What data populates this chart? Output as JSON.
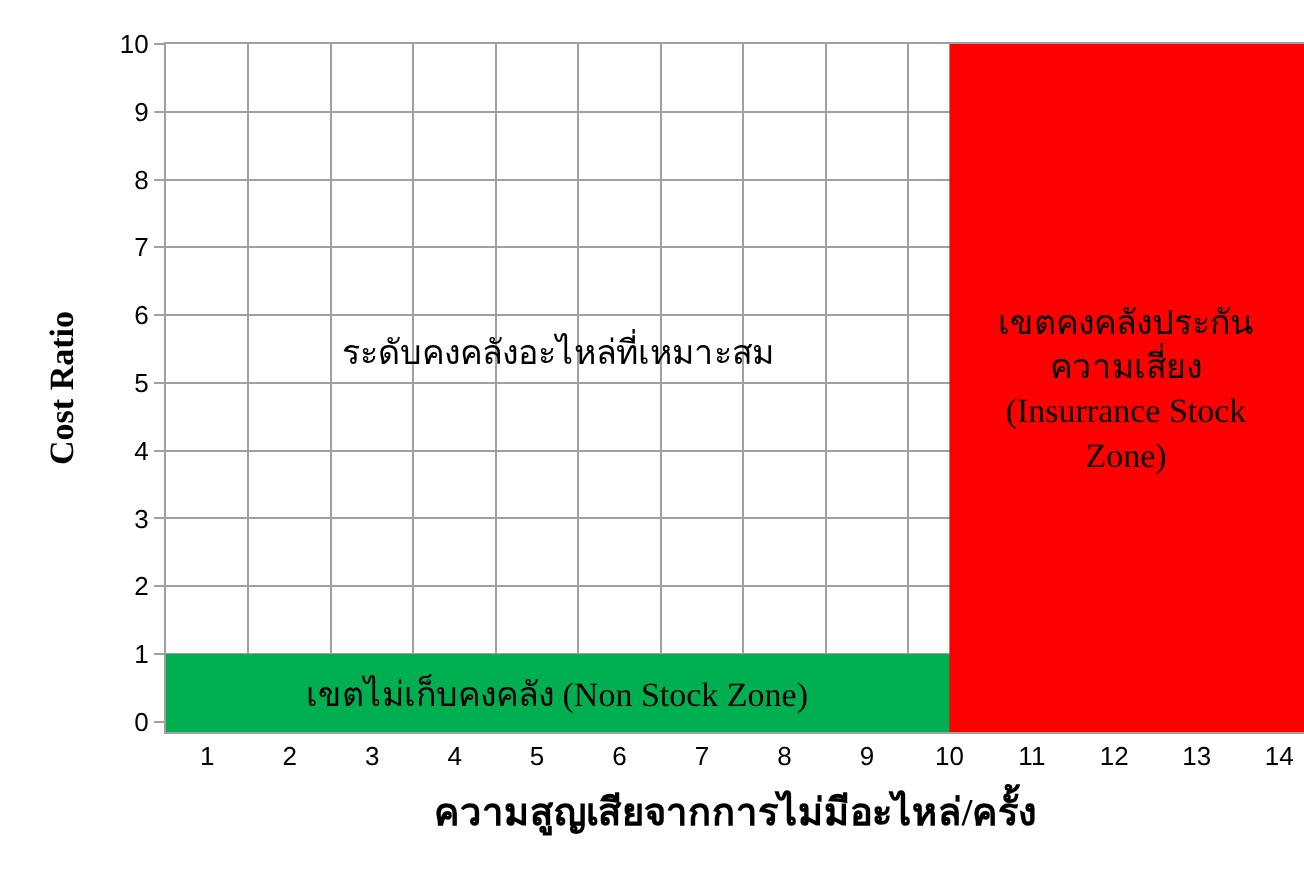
{
  "chart_data": {
    "type": "line",
    "xlabel": "ความสูญเสียจากการไม่มีอะไหล่/ครั้ง",
    "ylabel": "Cost Ratio",
    "xlim": [
      0.5,
      14.3
    ],
    "xticks": [
      1,
      2,
      3,
      4,
      5,
      6,
      7,
      8,
      9,
      10,
      11,
      12,
      13,
      14
    ],
    "ylim": [
      -0.15,
      10
    ],
    "yticks": [
      0,
      1,
      2,
      3,
      4,
      5,
      6,
      7,
      8,
      9,
      10
    ],
    "grid": true,
    "bands": [
      {
        "axis": "y",
        "from": -0.15,
        "to": 1,
        "label": "เขตไม่เก็บคงคลัง (Non Stock Zone)",
        "color": "#00b050"
      },
      {
        "axis": "x",
        "from": 10,
        "to": 14.3,
        "label": "เขตคงคลังประกัน\nความเสี่ยง\n(Insurrance Stock\nZone)",
        "color": "#ff0000"
      }
    ],
    "annotations": [
      "ระดับคงคลังอะไหล่ที่เหมาะสม"
    ]
  }
}
